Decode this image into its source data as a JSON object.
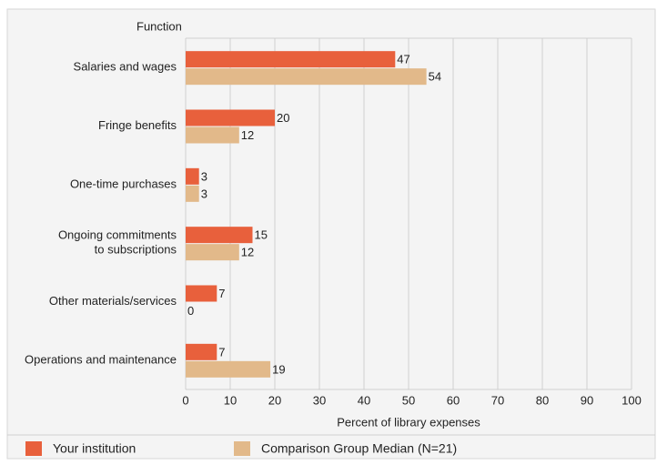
{
  "chart_data": {
    "type": "hbar",
    "y_axis_title": "Function",
    "x_axis_title": "Percent of library expenses",
    "categories": [
      [
        "Salaries and wages"
      ],
      [
        "Fringe benefits"
      ],
      [
        "One-time purchases"
      ],
      [
        "Ongoing commitments",
        "to subscriptions"
      ],
      [
        "Other materials/services"
      ],
      [
        "Operations and maintenance"
      ]
    ],
    "series": [
      {
        "name": "Your institution",
        "color": "#e8603c",
        "values": [
          47,
          20,
          3,
          15,
          7,
          7
        ]
      },
      {
        "name": "Comparison Group Median (N=21)",
        "color": "#e2b98a",
        "values": [
          54,
          12,
          3,
          12,
          0,
          19
        ]
      }
    ],
    "xlim": [
      0,
      100
    ],
    "xticks": [
      0,
      10,
      20,
      30,
      40,
      50,
      60,
      70,
      80,
      90,
      100
    ],
    "grid": true
  }
}
